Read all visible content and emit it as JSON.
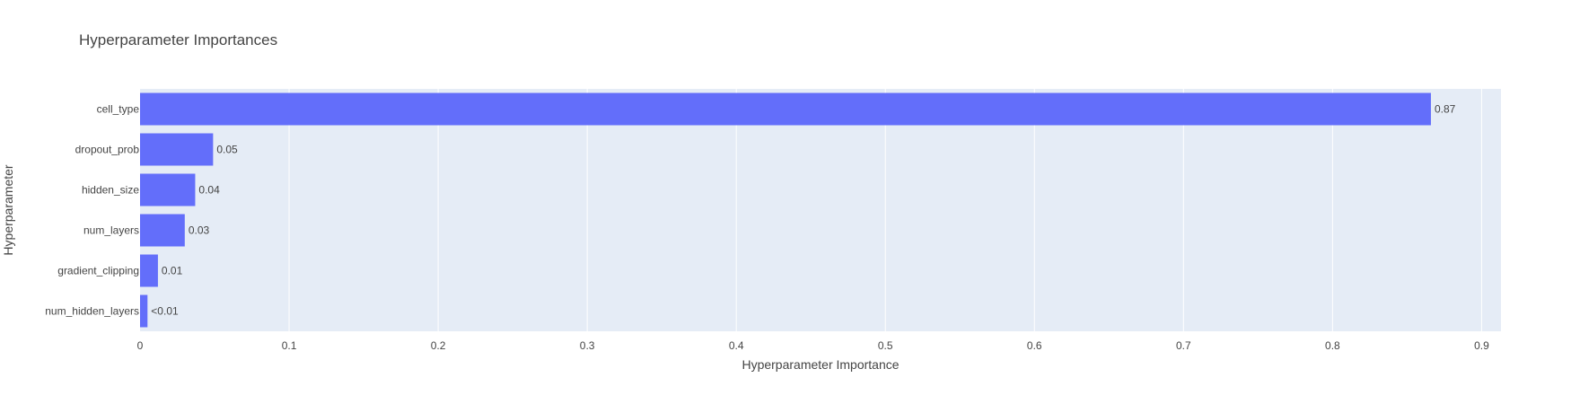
{
  "chart_data": {
    "type": "bar",
    "orientation": "horizontal",
    "title": "Hyperparameter Importances",
    "xlabel": "Hyperparameter Importance",
    "ylabel": "Hyperparameter",
    "xlim": [
      0,
      0.913
    ],
    "xticks": [
      0,
      0.1,
      0.2,
      0.3,
      0.4,
      0.5,
      0.6,
      0.7,
      0.8,
      0.9
    ],
    "xtick_labels": [
      "0",
      "0.1",
      "0.2",
      "0.3",
      "0.4",
      "0.5",
      "0.6",
      "0.7",
      "0.8",
      "0.9"
    ],
    "categories": [
      "cell_type",
      "dropout_prob",
      "hidden_size",
      "num_layers",
      "gradient_clipping",
      "num_hidden_layers"
    ],
    "values": [
      0.866,
      0.049,
      0.037,
      0.03,
      0.012,
      0.005
    ],
    "value_labels": [
      "0.87",
      "0.05",
      "0.04",
      "0.03",
      "0.01",
      "<0.01"
    ],
    "grid": true,
    "colors": {
      "bar": "#636efa",
      "plot_bg": "#e5ecf6",
      "grid": "#ffffff",
      "text": "#444444"
    }
  }
}
